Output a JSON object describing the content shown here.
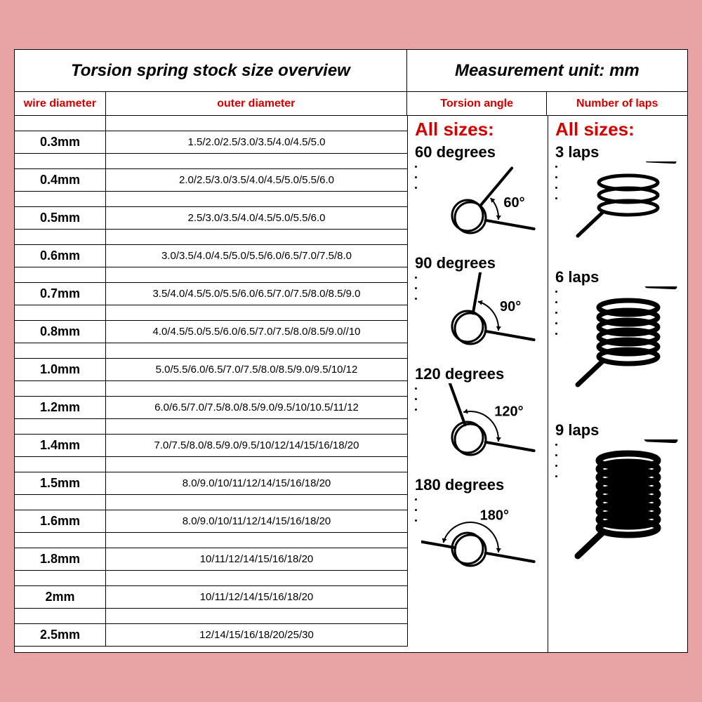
{
  "titles": {
    "left": "Torsion spring stock size overview",
    "right": "Measurement unit: mm"
  },
  "headers": {
    "wire_diameter": "wire diameter",
    "outer_diameter": "outer diameter",
    "torsion_angle": "Torsion angle",
    "number_of_laps": "Number of laps"
  },
  "colors": {
    "accent": "#d40000",
    "bg": "#e8a3a5",
    "sheet": "#ffffff",
    "border": "#000000"
  },
  "rows": [
    {
      "wd": "0.3mm",
      "od": "1.5/2.0/2.5/3.0/3.5/4.0/4.5/5.0"
    },
    {
      "wd": "0.4mm",
      "od": "2.0/2.5/3.0/3.5/4.0/4.5/5.0/5.5/6.0"
    },
    {
      "wd": "0.5mm",
      "od": "2.5/3.0/3.5/4.0/4.5/5.0/5.5/6.0"
    },
    {
      "wd": "0.6mm",
      "od": "3.0/3.5/4.0/4.5/5.0/5.5/6.0/6.5/7.0/7.5/8.0"
    },
    {
      "wd": "0.7mm",
      "od": "3.5/4.0/4.5/5.0/5.5/6.0/6.5/7.0/7.5/8.0/8.5/9.0"
    },
    {
      "wd": "0.8mm",
      "od": "4.0/4.5/5.0/5.5/6.0/6.5/7.0/7.5/8.0/8.5/9.0//10"
    },
    {
      "wd": "1.0mm",
      "od": "5.0/5.5/6.0/6.5/7.0/7.5/8.0/8.5/9.0/9.5/10/12"
    },
    {
      "wd": "1.2mm",
      "od": "6.0/6.5/7.0/7.5/8.0/8.5/9.0/9.5/10/10.5/11/12"
    },
    {
      "wd": "1.4mm",
      "od": "7.0/7.5/8.0/8.5/9.0/9.5/10/12/14/15/16/18/20"
    },
    {
      "wd": "1.5mm",
      "od": "8.0/9.0/10/11/12/14/15/16/18/20"
    },
    {
      "wd": "1.6mm",
      "od": "8.0/9.0/10/11/12/14/15/16/18/20"
    },
    {
      "wd": "1.8mm",
      "od": "10/11/12/14/15/16/18/20"
    },
    {
      "wd": "2mm",
      "od": "10/11/12/14/15/16/18/20"
    },
    {
      "wd": "2.5mm",
      "od": "12/14/15/16/18/20/25/30"
    }
  ],
  "torsion": {
    "all_sizes": "All sizes:",
    "angles": [
      {
        "label": "60 degrees",
        "deg_text": "60°"
      },
      {
        "label": "90 degrees",
        "deg_text": "90°"
      },
      {
        "label": "120 degrees",
        "deg_text": "120°"
      },
      {
        "label": "180 degrees",
        "deg_text": "180°"
      }
    ]
  },
  "laps": {
    "all_sizes": "All sizes:",
    "items": [
      {
        "label": "3 laps",
        "turns": 3
      },
      {
        "label": "6 laps",
        "turns": 6
      },
      {
        "label": "9 laps",
        "turns": 9
      }
    ]
  }
}
